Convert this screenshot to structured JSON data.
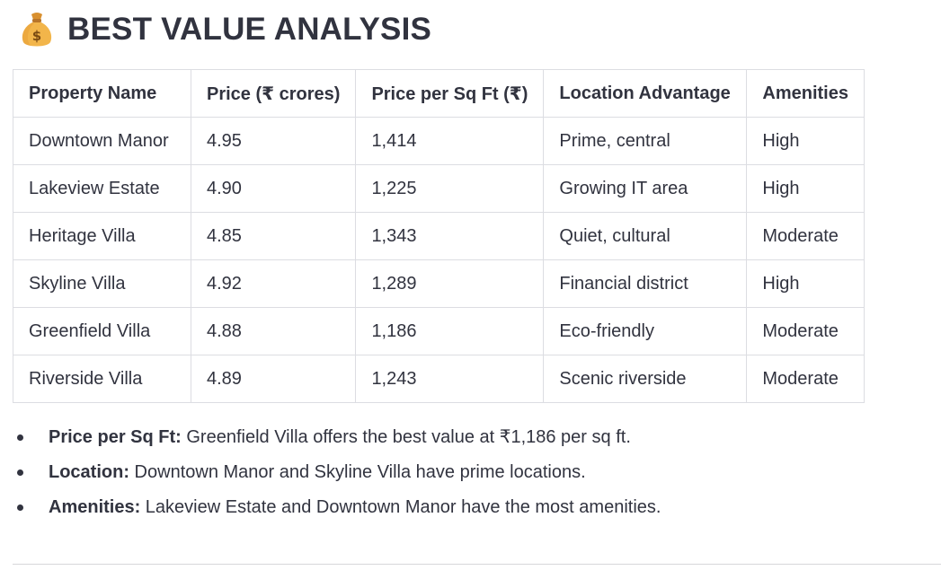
{
  "heading": {
    "icon": "money-bag-icon",
    "title": "BEST VALUE ANALYSIS"
  },
  "table": {
    "headers": [
      "Property Name",
      "Price (₹ crores)",
      "Price per Sq Ft (₹)",
      "Location Advantage",
      "Amenities"
    ],
    "rows": [
      [
        "Downtown Manor",
        "4.95",
        "1,414",
        "Prime, central",
        "High"
      ],
      [
        "Lakeview Estate",
        "4.90",
        "1,225",
        "Growing IT area",
        "High"
      ],
      [
        "Heritage Villa",
        "4.85",
        "1,343",
        "Quiet, cultural",
        "Moderate"
      ],
      [
        "Skyline Villa",
        "4.92",
        "1,289",
        "Financial district",
        "High"
      ],
      [
        "Greenfield Villa",
        "4.88",
        "1,186",
        "Eco-friendly",
        "Moderate"
      ],
      [
        "Riverside Villa",
        "4.89",
        "1,243",
        "Scenic riverside",
        "Moderate"
      ]
    ]
  },
  "bullets": [
    {
      "label": "Price per Sq Ft:",
      "text": " Greenfield Villa offers the best value at ₹1,186 per sq ft."
    },
    {
      "label": "Location:",
      "text": " Downtown Manor and Skyline Villa have prime locations."
    },
    {
      "label": "Amenities:",
      "text": " Lakeview Estate and Downtown Manor have the most amenities."
    }
  ],
  "colors": {
    "text": "#31333f",
    "border": "#dcdde2",
    "money_bag": "#f2b54a"
  }
}
